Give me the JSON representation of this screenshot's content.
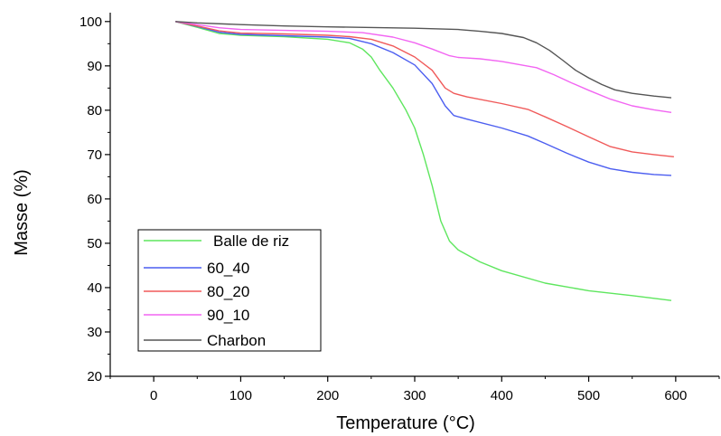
{
  "chart_data": {
    "type": "line",
    "xlabel": "Temperature (°C)",
    "ylabel": "Masse (%)",
    "xlim": [
      -50,
      650
    ],
    "ylim": [
      20,
      102
    ],
    "xticks": [
      0,
      100,
      200,
      300,
      400,
      500,
      600
    ],
    "yticks": [
      20,
      30,
      40,
      50,
      60,
      70,
      80,
      90,
      100
    ],
    "grid": false,
    "legend_position": "bottom-left",
    "series": [
      {
        "name": "Balle de riz",
        "color": "#5ee65e",
        "points": [
          [
            25,
            100
          ],
          [
            50,
            98.7
          ],
          [
            75,
            97.3
          ],
          [
            100,
            96.9
          ],
          [
            150,
            96.6
          ],
          [
            200,
            96.0
          ],
          [
            225,
            95.2
          ],
          [
            240,
            93.8
          ],
          [
            250,
            92.0
          ],
          [
            260,
            89.0
          ],
          [
            275,
            85.0
          ],
          [
            290,
            80.0
          ],
          [
            300,
            76.0
          ],
          [
            310,
            70.0
          ],
          [
            320,
            63.0
          ],
          [
            330,
            55.0
          ],
          [
            340,
            50.5
          ],
          [
            350,
            48.5
          ],
          [
            375,
            45.8
          ],
          [
            400,
            43.8
          ],
          [
            450,
            41.0
          ],
          [
            500,
            39.3
          ],
          [
            550,
            38.2
          ],
          [
            595,
            37.1
          ]
        ]
      },
      {
        "name": "60_40",
        "color": "#4c5ef0",
        "points": [
          [
            25,
            100
          ],
          [
            50,
            98.9
          ],
          [
            75,
            97.6
          ],
          [
            100,
            97.1
          ],
          [
            150,
            96.8
          ],
          [
            200,
            96.5
          ],
          [
            225,
            96.2
          ],
          [
            250,
            95.0
          ],
          [
            275,
            93.0
          ],
          [
            300,
            90.2
          ],
          [
            320,
            86.0
          ],
          [
            335,
            81.0
          ],
          [
            345,
            78.8
          ],
          [
            360,
            78.0
          ],
          [
            400,
            76.0
          ],
          [
            430,
            74.2
          ],
          [
            450,
            72.5
          ],
          [
            475,
            70.3
          ],
          [
            500,
            68.3
          ],
          [
            525,
            66.8
          ],
          [
            550,
            66.0
          ],
          [
            575,
            65.5
          ],
          [
            595,
            65.3
          ]
        ]
      },
      {
        "name": "80_20",
        "color": "#f05a5a",
        "points": [
          [
            25,
            100
          ],
          [
            50,
            99.0
          ],
          [
            75,
            97.9
          ],
          [
            100,
            97.4
          ],
          [
            150,
            97.2
          ],
          [
            200,
            96.9
          ],
          [
            225,
            96.6
          ],
          [
            250,
            96.0
          ],
          [
            275,
            94.5
          ],
          [
            300,
            92.0
          ],
          [
            320,
            89.0
          ],
          [
            335,
            85.0
          ],
          [
            345,
            83.8
          ],
          [
            360,
            83.0
          ],
          [
            400,
            81.5
          ],
          [
            430,
            80.2
          ],
          [
            450,
            78.5
          ],
          [
            475,
            76.3
          ],
          [
            500,
            74.0
          ],
          [
            525,
            71.8
          ],
          [
            550,
            70.6
          ],
          [
            575,
            70.0
          ],
          [
            598,
            69.5
          ]
        ]
      },
      {
        "name": "90_10",
        "color": "#f265f2",
        "points": [
          [
            25,
            100
          ],
          [
            50,
            99.3
          ],
          [
            75,
            98.6
          ],
          [
            100,
            98.2
          ],
          [
            150,
            98.0
          ],
          [
            200,
            97.8
          ],
          [
            240,
            97.5
          ],
          [
            275,
            96.5
          ],
          [
            300,
            95.2
          ],
          [
            320,
            93.8
          ],
          [
            340,
            92.3
          ],
          [
            350,
            91.9
          ],
          [
            375,
            91.6
          ],
          [
            400,
            91.0
          ],
          [
            440,
            89.6
          ],
          [
            460,
            88.0
          ],
          [
            480,
            86.2
          ],
          [
            500,
            84.5
          ],
          [
            525,
            82.5
          ],
          [
            550,
            81.0
          ],
          [
            575,
            80.1
          ],
          [
            595,
            79.5
          ]
        ]
      },
      {
        "name": "Charbon",
        "color": "#555555",
        "points": [
          [
            25,
            100
          ],
          [
            50,
            99.7
          ],
          [
            100,
            99.3
          ],
          [
            150,
            99.0
          ],
          [
            200,
            98.8
          ],
          [
            300,
            98.5
          ],
          [
            350,
            98.2
          ],
          [
            375,
            97.8
          ],
          [
            400,
            97.3
          ],
          [
            425,
            96.4
          ],
          [
            440,
            95.2
          ],
          [
            455,
            93.5
          ],
          [
            470,
            91.3
          ],
          [
            485,
            89.0
          ],
          [
            500,
            87.3
          ],
          [
            515,
            85.8
          ],
          [
            530,
            84.6
          ],
          [
            550,
            83.8
          ],
          [
            575,
            83.2
          ],
          [
            595,
            82.8
          ]
        ]
      }
    ]
  }
}
